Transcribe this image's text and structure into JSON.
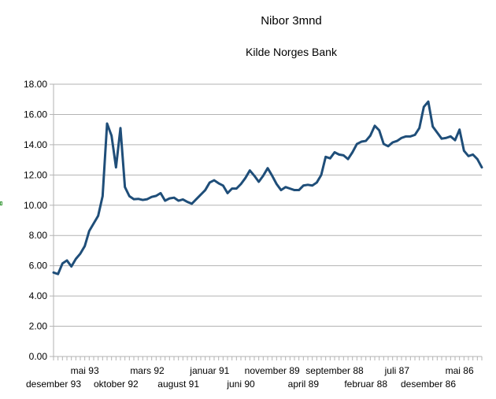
{
  "chart_data": {
    "type": "line",
    "title": "Nibor 3mnd",
    "subtitle": "Kilde Norges Bank",
    "xlabel": "",
    "ylabel": "",
    "ylim": [
      0,
      18
    ],
    "y_ticks": [
      "0.00",
      "2.00",
      "4.00",
      "6.00",
      "8.00",
      "10.00",
      "12.00",
      "14.00",
      "16.00",
      "18.00"
    ],
    "grid": true,
    "legend": "none",
    "x_axis_order": "reverse-chronological",
    "x_tick_labels": [
      {
        "label": "desember 93",
        "row": 2,
        "index": 0
      },
      {
        "label": "mai 93",
        "row": 1,
        "index": 7
      },
      {
        "label": "oktober 92",
        "row": 2,
        "index": 14
      },
      {
        "label": "mars 92",
        "row": 1,
        "index": 21
      },
      {
        "label": "august 91",
        "row": 2,
        "index": 28
      },
      {
        "label": "januar 91",
        "row": 1,
        "index": 35
      },
      {
        "label": "juni 90",
        "row": 2,
        "index": 42
      },
      {
        "label": "november 89",
        "row": 1,
        "index": 49
      },
      {
        "label": "april 89",
        "row": 2,
        "index": 56
      },
      {
        "label": "september 88",
        "row": 1,
        "index": 63
      },
      {
        "label": "februar 88",
        "row": 2,
        "index": 70
      },
      {
        "label": "juli 87",
        "row": 1,
        "index": 77
      },
      {
        "label": "desember 86",
        "row": 2,
        "index": 84
      },
      {
        "label": "mai 86",
        "row": 1,
        "index": 91
      }
    ],
    "series": [
      {
        "color": "#1f4e79",
        "values": [
          5.55,
          5.45,
          6.15,
          6.35,
          5.95,
          6.45,
          6.8,
          7.3,
          8.3,
          8.8,
          9.3,
          10.6,
          15.4,
          14.6,
          12.5,
          15.1,
          11.2,
          10.6,
          10.4,
          10.42,
          10.35,
          10.4,
          10.55,
          10.62,
          10.8,
          10.3,
          10.45,
          10.5,
          10.3,
          10.38,
          10.22,
          10.1,
          10.4,
          10.7,
          11.0,
          11.5,
          11.65,
          11.45,
          11.3,
          10.8,
          11.1,
          11.1,
          11.4,
          11.8,
          12.3,
          11.95,
          11.55,
          11.95,
          12.45,
          11.95,
          11.4,
          11.0,
          11.2,
          11.1,
          11.0,
          11.0,
          11.3,
          11.35,
          11.3,
          11.5,
          12.0,
          13.2,
          13.1,
          13.5,
          13.35,
          13.3,
          13.05,
          13.5,
          14.05,
          14.2,
          14.25,
          14.6,
          15.25,
          14.95,
          14.05,
          13.9,
          14.15,
          14.25,
          14.45,
          14.55,
          14.55,
          14.65,
          15.1,
          16.5,
          16.85,
          15.2,
          14.8,
          14.4,
          14.45,
          14.55,
          14.3,
          15.0,
          13.6,
          13.25,
          13.35,
          13.05,
          12.5
        ]
      }
    ]
  }
}
